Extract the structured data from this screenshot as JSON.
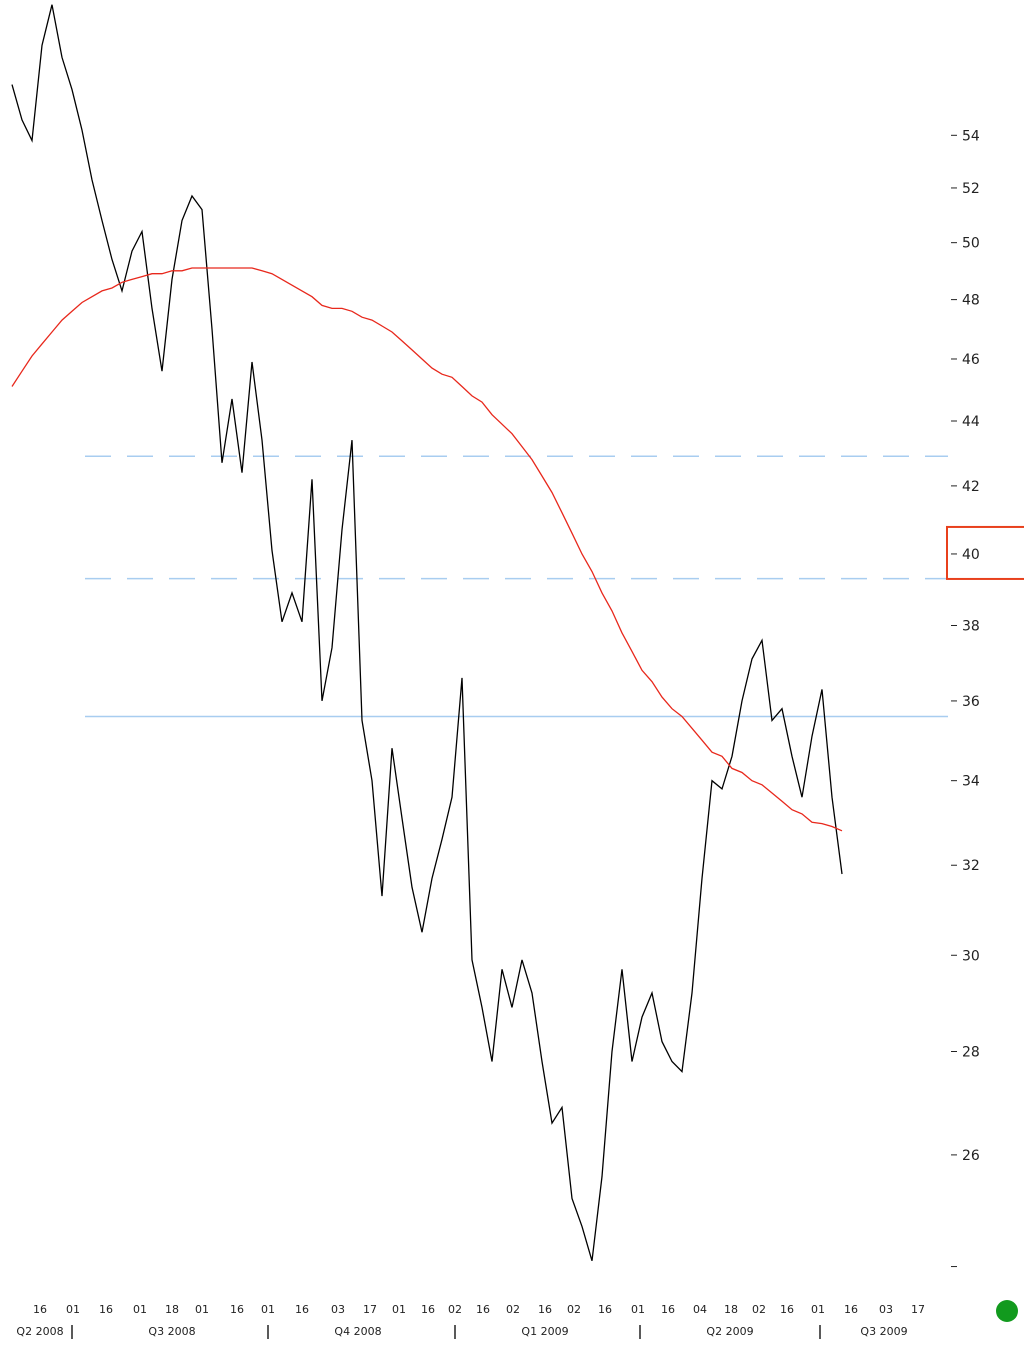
{
  "chart_data": {
    "type": "line",
    "log_scale": true,
    "xlim": [
      -1.2,
      93.8
    ],
    "ylim": [
      23.6,
      59.5
    ],
    "yticks": [
      54,
      52,
      50,
      48,
      46,
      44,
      42,
      40,
      38,
      36,
      34,
      32,
      30,
      28,
      26,
      {
        "value": 24,
        "label": null
      }
    ],
    "highlight_tick": 40,
    "xticks": [
      {
        "value": 2.8,
        "label": "16"
      },
      {
        "value": 6.1,
        "label": "01"
      },
      {
        "value": 9.4,
        "label": "16"
      },
      {
        "value": 12.8,
        "label": "01"
      },
      {
        "value": 16.0,
        "label": "18"
      },
      {
        "value": 19.0,
        "label": "01"
      },
      {
        "value": 22.5,
        "label": "16"
      },
      {
        "value": 25.6,
        "label": "01"
      },
      {
        "value": 29.0,
        "label": "16"
      },
      {
        "value": 32.6,
        "label": "03"
      },
      {
        "value": 35.8,
        "label": "17"
      },
      {
        "value": 38.7,
        "label": "01"
      },
      {
        "value": 41.6,
        "label": "16"
      },
      {
        "value": 44.3,
        "label": "02"
      },
      {
        "value": 47.1,
        "label": "16"
      },
      {
        "value": 50.1,
        "label": "02"
      },
      {
        "value": 53.3,
        "label": "16"
      },
      {
        "value": 56.2,
        "label": "02"
      },
      {
        "value": 59.3,
        "label": "16"
      },
      {
        "value": 62.6,
        "label": "01"
      },
      {
        "value": 65.6,
        "label": "16"
      },
      {
        "value": 68.8,
        "label": "04"
      },
      {
        "value": 71.9,
        "label": "18"
      },
      {
        "value": 74.7,
        "label": "02"
      },
      {
        "value": 77.5,
        "label": "16"
      },
      {
        "value": 80.6,
        "label": "01"
      },
      {
        "value": 83.9,
        "label": "16"
      },
      {
        "value": 87.4,
        "label": "03"
      },
      {
        "value": 90.6,
        "label": "17"
      }
    ],
    "quarter_ticks": [
      {
        "value": 2.8,
        "label": "Q2 2008"
      },
      {
        "value": 16.0,
        "label": "Q3 2008"
      },
      {
        "value": 34.6,
        "label": "Q4 2008"
      },
      {
        "value": 53.3,
        "label": "Q1 2009"
      },
      {
        "value": 71.8,
        "label": "Q2 2009"
      },
      {
        "value": 87.2,
        "label": "Q3 2009"
      }
    ],
    "quarter_breaks": [
      6.0,
      25.6,
      44.3,
      62.8,
      80.8
    ],
    "reference_lines": [
      {
        "value": 42.9,
        "style": "dashed"
      },
      {
        "value": 39.3,
        "style": "dashed"
      },
      {
        "value": 35.6,
        "style": "solid"
      }
    ],
    "reference_color": "#a8cdf0",
    "series": [
      {
        "color": "#000000",
        "values": [
          56,
          54.6,
          53.8,
          57.6,
          59.3,
          57.1,
          55.8,
          54.2,
          52.3,
          50.8,
          49.4,
          48.3,
          49.7,
          50.4,
          47.7,
          45.6,
          48.7,
          50.8,
          51.7,
          51.2,
          47,
          42.7,
          44.7,
          42.4,
          45.9,
          43.4,
          40.1,
          38.1,
          38.9,
          38.1,
          42.2,
          36,
          37.4,
          40.7,
          43.4,
          35.5,
          34,
          31.3,
          34.8,
          33.1,
          31.5,
          30.5,
          31.7,
          32.6,
          33.6,
          36.6,
          29.9,
          28.9,
          27.8,
          29.7,
          28.9,
          29.9,
          29.2,
          27.8,
          26.6,
          26.9,
          25.2,
          24.7,
          24.1,
          25.6,
          28,
          29.7,
          27.8,
          28.7,
          29.2,
          28.2,
          27.8,
          27.6,
          29.2,
          31.7,
          34,
          33.8,
          34.6,
          36,
          37.1,
          37.6,
          35.5,
          35.8,
          34.6,
          33.6,
          35.1,
          36.3,
          33.6,
          31.8
        ]
      },
      {
        "color": "#e8281c",
        "values": [
          45.1,
          45.6,
          46.1,
          46.5,
          46.9,
          47.3,
          47.6,
          47.9,
          48.1,
          48.3,
          48.4,
          48.6,
          48.7,
          48.8,
          48.9,
          48.9,
          49.0,
          49.0,
          49.1,
          49.1,
          49.1,
          49.1,
          49.1,
          49.1,
          49.1,
          49.0,
          48.9,
          48.7,
          48.5,
          48.3,
          48.1,
          47.8,
          47.7,
          47.7,
          47.6,
          47.4,
          47.3,
          47.1,
          46.9,
          46.6,
          46.3,
          46.0,
          45.7,
          45.5,
          45.4,
          45.1,
          44.8,
          44.6,
          44.2,
          43.9,
          43.6,
          43.2,
          42.8,
          42.3,
          41.8,
          41.2,
          40.6,
          40.0,
          39.5,
          38.9,
          38.4,
          37.8,
          37.3,
          36.8,
          36.5,
          36.1,
          35.8,
          35.6,
          35.3,
          35.0,
          34.7,
          34.6,
          34.3,
          34.2,
          34.0,
          33.9,
          33.7,
          33.5,
          33.3,
          33.2,
          33.0,
          32.97,
          32.9,
          32.8
        ]
      }
    ]
  }
}
